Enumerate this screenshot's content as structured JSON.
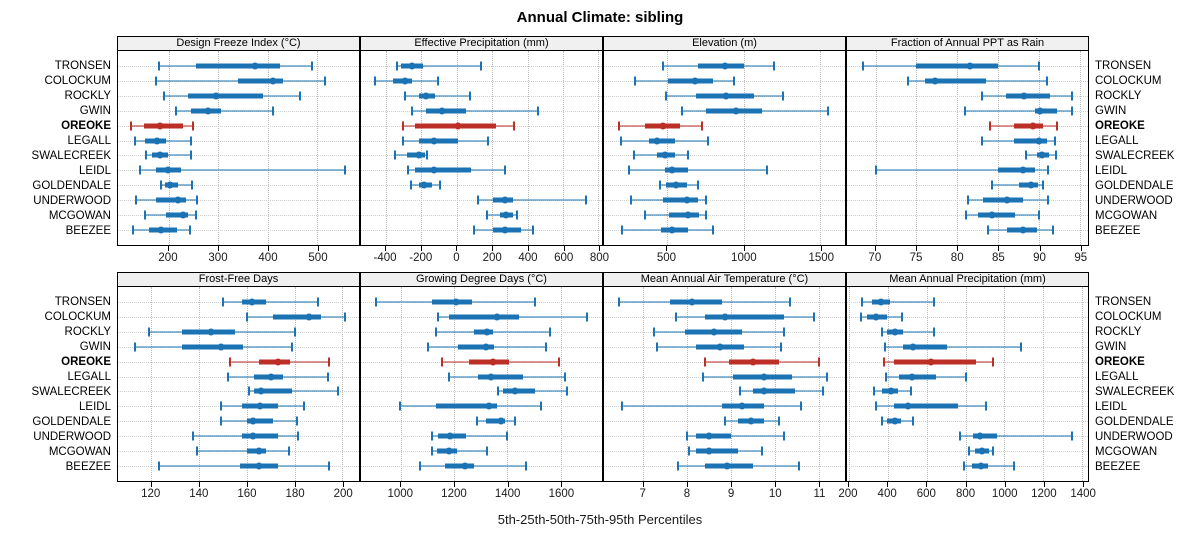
{
  "title": "Annual Climate: sibling",
  "caption": "5th-25th-50th-75th-95th Percentiles",
  "colors": {
    "series": "#1C73B4",
    "highlight": "#BB2F26",
    "strip_bg": "#F0F0F0",
    "grid": "#BABABA",
    "row_guide": "#CFCFCF",
    "border": "#000000"
  },
  "sites": [
    "TRONSEN",
    "COLOCKUM",
    "ROCKLY",
    "GWIN",
    "OREOKE",
    "LEGALL",
    "SWALECREEK",
    "LEIDL",
    "GOLDENDALE",
    "UNDERWOOD",
    "MCGOWAN",
    "BEEZEE"
  ],
  "highlight_site": "OREOKE",
  "chart_data": {
    "type": "dotplot",
    "variant": "dot-and-whisker percentile plot, 2 rows x 4 columns of panels",
    "percentiles": [
      5,
      25,
      50,
      75,
      95
    ],
    "legend_position": "none",
    "grid": "dotted vertical gridlines at ticks, dotted horizontal guide per site row",
    "panels": [
      {
        "title": "Design Freeze Index (°C)",
        "grid_row": 0,
        "xlim": [
          98,
          584
        ],
        "ticks": [
          200,
          300,
          400,
          500
        ],
        "values": [
          [
            180,
            255,
            375,
            425,
            490
          ],
          [
            175,
            340,
            410,
            430,
            515
          ],
          [
            190,
            240,
            295,
            390,
            465
          ],
          [
            215,
            245,
            280,
            305,
            410
          ],
          [
            125,
            150,
            183,
            230,
            250
          ],
          [
            132,
            152,
            177,
            195,
            245
          ],
          [
            155,
            167,
            183,
            199,
            245
          ],
          [
            142,
            175,
            199,
            225,
            555
          ],
          [
            185,
            192,
            203,
            219,
            247
          ],
          [
            134,
            175,
            219,
            235,
            257
          ],
          [
            152,
            194,
            230,
            240,
            255
          ],
          [
            129,
            160,
            185,
            218,
            244
          ]
        ]
      },
      {
        "title": "Effective Precipitation (mm)",
        "grid_row": 0,
        "xlim": [
          -540,
          820
        ],
        "ticks": [
          -400,
          -200,
          0,
          200,
          400,
          600,
          800
        ],
        "values": [
          [
            -335,
            -315,
            -255,
            -190,
            135
          ],
          [
            -460,
            -360,
            -290,
            -250,
            -105
          ],
          [
            -290,
            -210,
            -175,
            -125,
            75
          ],
          [
            -255,
            -175,
            -85,
            50,
            460
          ],
          [
            -305,
            -235,
            10,
            220,
            325
          ],
          [
            -305,
            -215,
            -130,
            5,
            175
          ],
          [
            -350,
            -280,
            -215,
            -180,
            -165
          ],
          [
            -275,
            -235,
            -130,
            80,
            270
          ],
          [
            -260,
            -215,
            -185,
            -140,
            -95
          ],
          [
            120,
            205,
            275,
            315,
            730
          ],
          [
            170,
            245,
            280,
            320,
            340
          ],
          [
            100,
            205,
            270,
            365,
            430
          ]
        ]
      },
      {
        "title": "Elevation (m)",
        "grid_row": 0,
        "xlim": [
          90,
          1660
        ],
        "ticks": [
          500,
          1000,
          1500
        ],
        "values": [
          [
            475,
            700,
            880,
            1000,
            1195
          ],
          [
            290,
            505,
            680,
            800,
            940
          ],
          [
            495,
            690,
            885,
            1065,
            1255
          ],
          [
            600,
            755,
            950,
            1120,
            1550
          ],
          [
            185,
            355,
            475,
            585,
            730
          ],
          [
            200,
            380,
            435,
            550,
            770
          ],
          [
            285,
            435,
            490,
            550,
            640
          ],
          [
            255,
            485,
            530,
            635,
            1150
          ],
          [
            455,
            495,
            560,
            630,
            700
          ],
          [
            265,
            475,
            630,
            705,
            755
          ],
          [
            355,
            515,
            635,
            710,
            755
          ],
          [
            205,
            460,
            535,
            635,
            800
          ]
        ]
      },
      {
        "title": "Fraction of Annual PPT as Rain",
        "grid_row": 0,
        "xlim": [
          66.5,
          96
        ],
        "ticks": [
          70,
          75,
          80,
          85,
          90,
          95
        ],
        "values": [
          [
            68.5,
            75,
            81.5,
            85,
            90
          ],
          [
            74,
            76,
            77.3,
            83.5,
            91
          ],
          [
            83,
            86,
            88.2,
            91.4,
            94
          ],
          [
            81,
            89.5,
            90.1,
            92.2,
            94
          ],
          [
            84,
            87,
            89.3,
            90.5,
            92.2
          ],
          [
            83,
            87,
            90,
            91,
            92
          ],
          [
            88.4,
            89.7,
            90.4,
            91.2,
            92.1
          ],
          [
            70,
            85,
            88.1,
            89.5,
            91.1
          ],
          [
            84.2,
            87.5,
            89,
            89.9,
            90.5
          ],
          [
            81.3,
            83.2,
            86.1,
            88,
            91.1
          ],
          [
            81.1,
            82.5,
            84.2,
            87.1,
            90
          ],
          [
            83.7,
            86.1,
            88.1,
            89.7,
            91.7
          ]
        ]
      },
      {
        "title": "Frost-Free Days",
        "grid_row": 1,
        "xlim": [
          106,
          207
        ],
        "ticks": [
          120,
          140,
          160,
          180,
          200
        ],
        "values": [
          [
            150,
            158,
            162,
            168,
            190
          ],
          [
            160,
            171,
            186,
            191,
            201
          ],
          [
            119,
            133,
            145,
            155,
            180
          ],
          [
            113,
            133,
            149,
            158.5,
            179
          ],
          [
            153,
            165,
            173,
            178,
            194.5
          ],
          [
            152,
            163,
            170,
            175,
            194
          ],
          [
            161,
            163,
            166,
            179,
            198
          ],
          [
            149,
            158,
            165.5,
            173,
            184
          ],
          [
            149,
            160,
            162.5,
            171,
            181
          ],
          [
            137.5,
            158,
            162.5,
            173,
            181.5
          ],
          [
            139,
            160,
            165,
            168,
            177.5
          ],
          [
            123,
            157,
            165,
            173,
            194.5
          ]
        ]
      },
      {
        "title": "Growing Degree Days (°C)",
        "grid_row": 1,
        "xlim": [
          850,
          1755
        ],
        "ticks": [
          1000,
          1200,
          1400,
          1600
        ],
        "values": [
          [
            905,
            1115,
            1205,
            1265,
            1505
          ],
          [
            1140,
            1180,
            1360,
            1445,
            1700
          ],
          [
            1130,
            1275,
            1325,
            1345,
            1560
          ],
          [
            1100,
            1215,
            1320,
            1350,
            1545
          ],
          [
            1155,
            1255,
            1345,
            1405,
            1595
          ],
          [
            1180,
            1290,
            1340,
            1460,
            1615
          ],
          [
            1365,
            1385,
            1430,
            1505,
            1625
          ],
          [
            995,
            1130,
            1330,
            1360,
            1525
          ],
          [
            1285,
            1320,
            1375,
            1390,
            1430
          ],
          [
            1115,
            1140,
            1185,
            1245,
            1400
          ],
          [
            1115,
            1135,
            1180,
            1210,
            1325
          ],
          [
            1070,
            1165,
            1240,
            1275,
            1470
          ]
        ]
      },
      {
        "title": "Mean Annual Air Temperature (°C)",
        "grid_row": 1,
        "xlim": [
          6.1,
          11.6
        ],
        "ticks": [
          7,
          8,
          9,
          10,
          11
        ],
        "values": [
          [
            6.45,
            7.6,
            8.1,
            8.8,
            10.35
          ],
          [
            7.75,
            8.4,
            8.85,
            10.2,
            10.9
          ],
          [
            7.25,
            7.95,
            8.6,
            9.25,
            10.2
          ],
          [
            7.3,
            8.2,
            8.75,
            9.3,
            10.15
          ],
          [
            8.4,
            8.95,
            9.5,
            10.1,
            11.0
          ],
          [
            8.35,
            9.05,
            9.75,
            10.4,
            11.2
          ],
          [
            9.2,
            9.5,
            9.75,
            10.45,
            11.1
          ],
          [
            6.5,
            8.8,
            9.25,
            9.75,
            10.6
          ],
          [
            8.85,
            9.15,
            9.45,
            9.75,
            10.1
          ],
          [
            8.0,
            8.2,
            8.5,
            9.0,
            10.2
          ],
          [
            8.05,
            8.2,
            8.5,
            9.15,
            9.7
          ],
          [
            7.8,
            8.4,
            8.9,
            9.5,
            10.55
          ]
        ]
      },
      {
        "title": "Mean Annual Precipitation (mm)",
        "grid_row": 1,
        "xlim": [
          190,
          1430
        ],
        "ticks": [
          200,
          400,
          600,
          800,
          1000,
          1200,
          1400
        ],
        "values": [
          [
            265,
            320,
            365,
            410,
            640
          ],
          [
            260,
            295,
            340,
            395,
            475
          ],
          [
            370,
            395,
            435,
            480,
            640
          ],
          [
            385,
            480,
            530,
            705,
            1085
          ],
          [
            380,
            430,
            620,
            855,
            940
          ],
          [
            390,
            455,
            525,
            650,
            800
          ],
          [
            330,
            370,
            415,
            455,
            520
          ],
          [
            340,
            430,
            505,
            760,
            905
          ],
          [
            370,
            395,
            435,
            470,
            530
          ],
          [
            770,
            840,
            875,
            960,
            1350
          ],
          [
            820,
            850,
            885,
            920,
            940
          ],
          [
            790,
            835,
            880,
            915,
            1050
          ]
        ]
      }
    ]
  }
}
